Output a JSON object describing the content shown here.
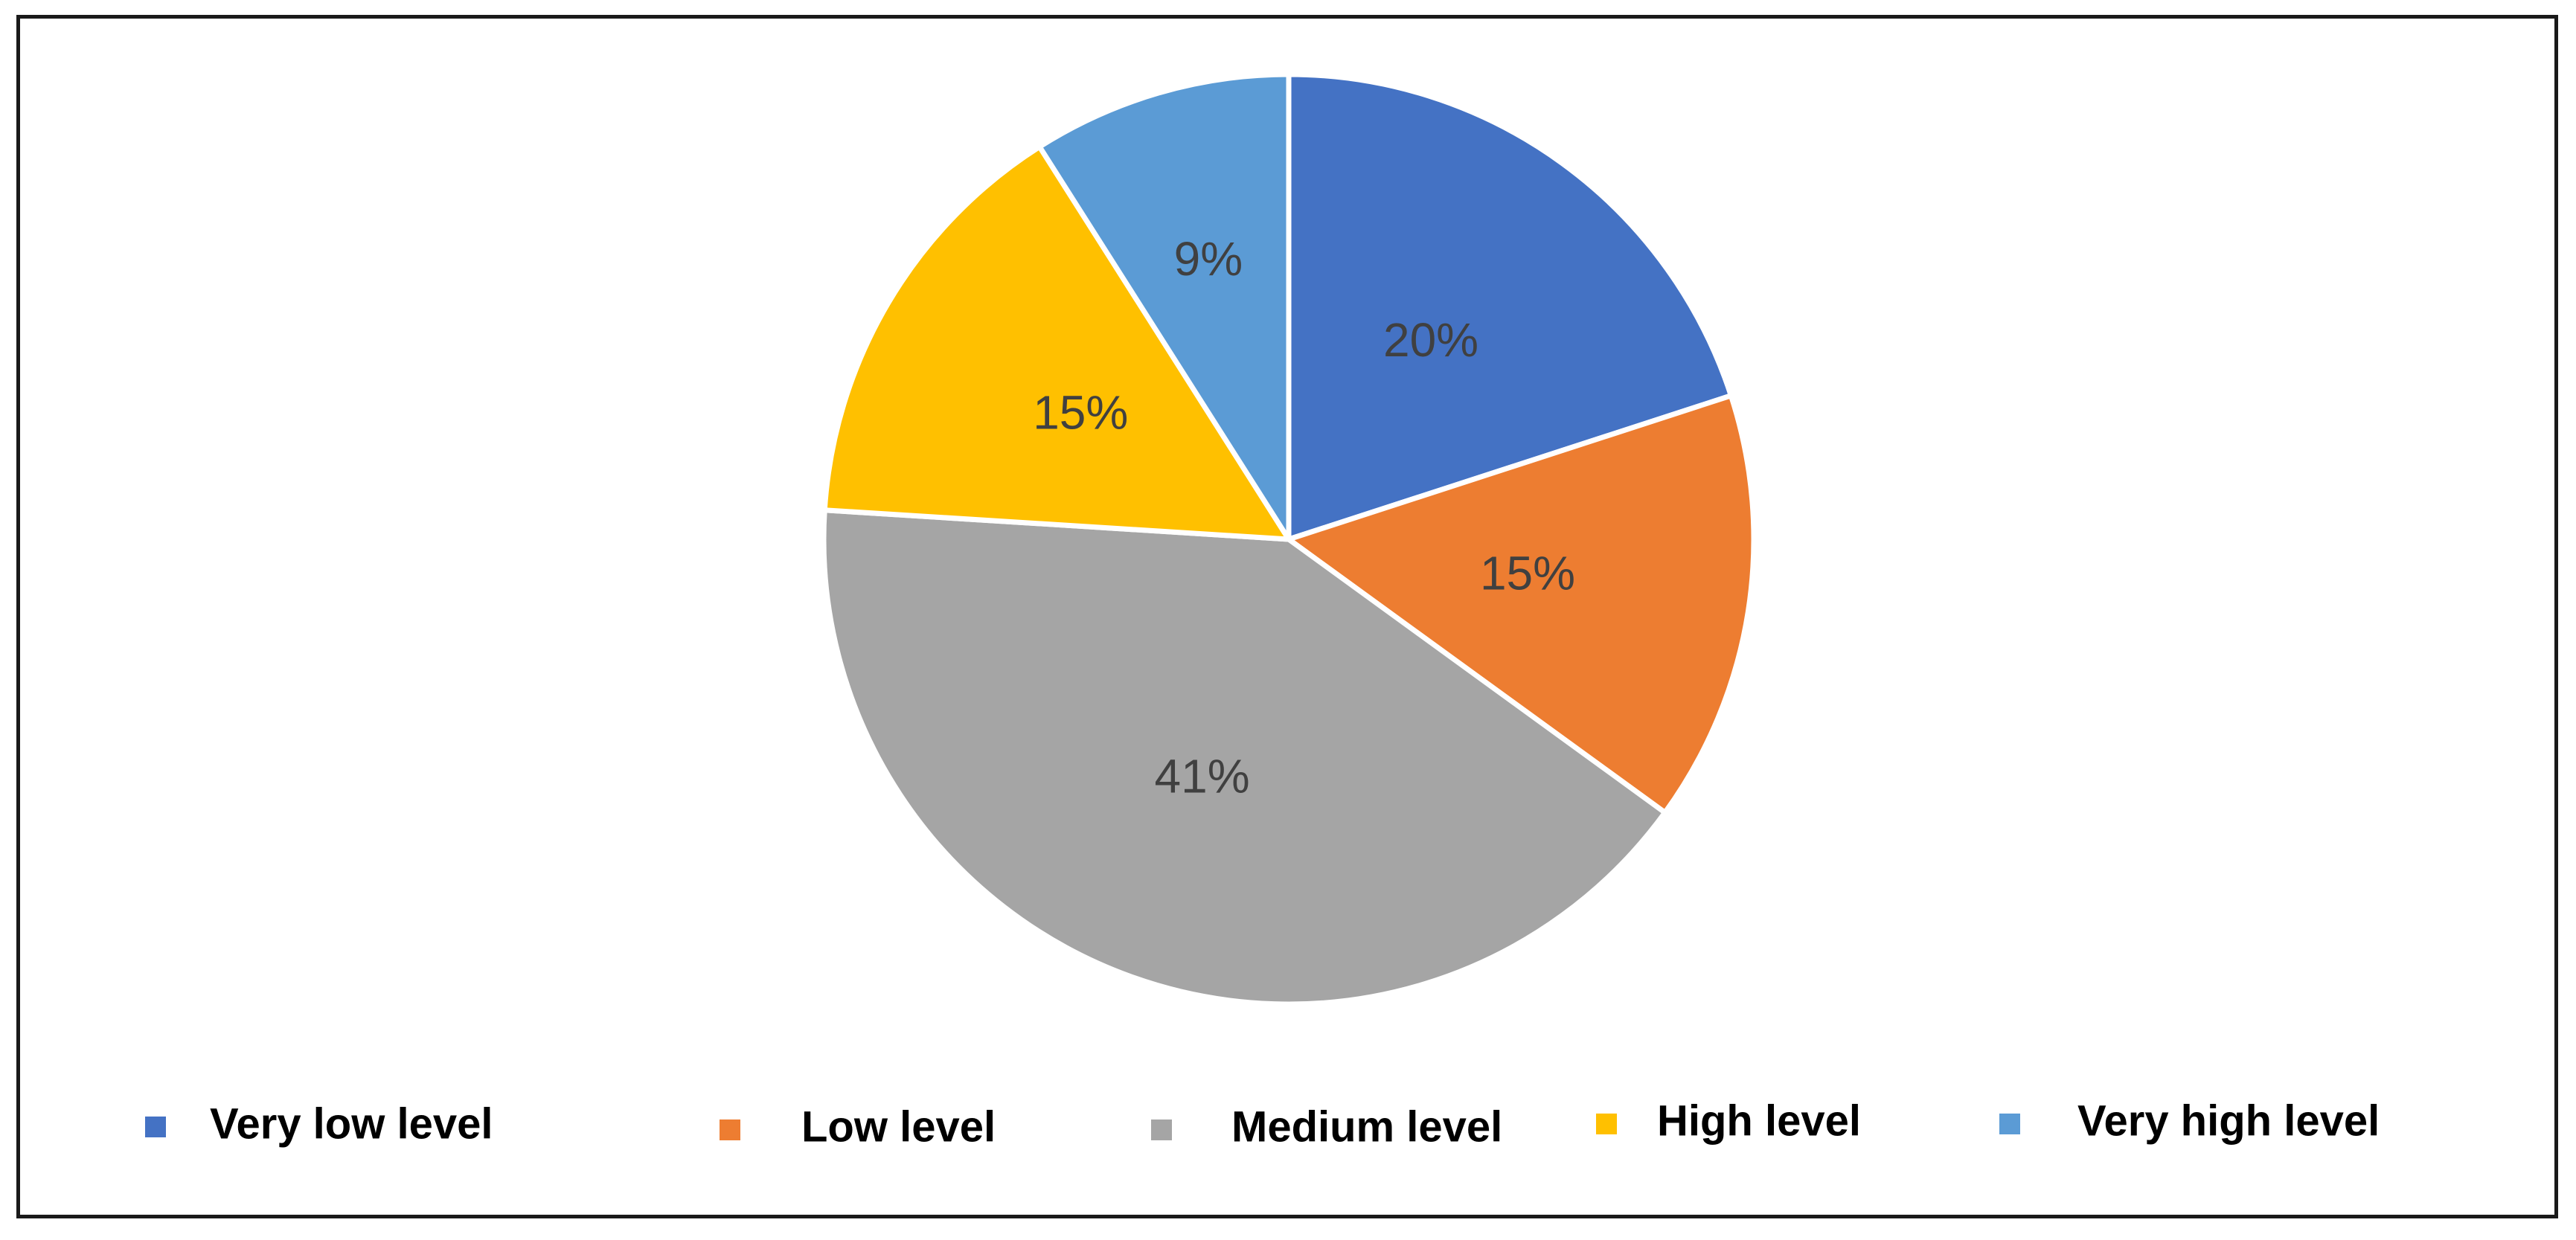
{
  "chart_data": {
    "type": "pie",
    "title": "",
    "categories": [
      "Very low level",
      "Low level",
      "Medium level",
      "High level",
      "Very high level"
    ],
    "values": [
      20,
      15,
      41,
      15,
      9
    ],
    "data_labels": [
      "20%",
      "15%",
      "41%",
      "15%",
      "9%"
    ],
    "colors": [
      "#4472C4",
      "#ED7D31",
      "#A5A5A5",
      "#FFC000",
      "#5B9BD5"
    ],
    "start_angle_deg": 0,
    "direction": "clockwise",
    "legend_position": "bottom"
  }
}
